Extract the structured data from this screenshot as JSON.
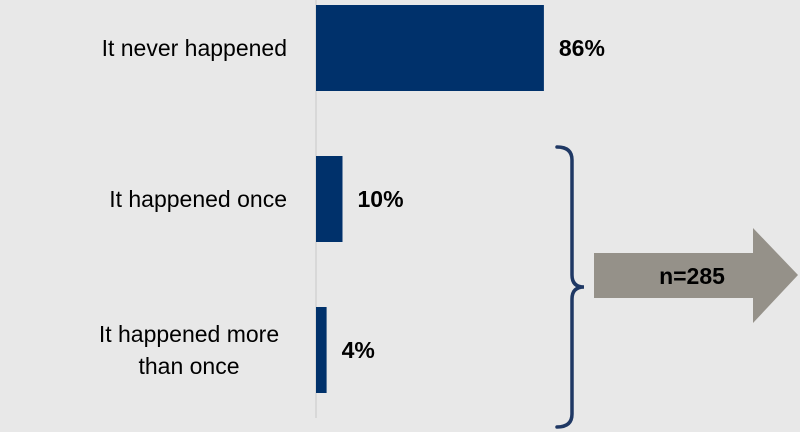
{
  "chart_data": {
    "type": "bar",
    "orientation": "horizontal",
    "categories": [
      [
        "It never happened"
      ],
      [
        "It happened once"
      ],
      [
        "It happened more",
        "than once"
      ]
    ],
    "values": [
      86,
      10,
      4
    ],
    "value_labels": [
      "86%",
      "10%",
      "4%"
    ],
    "xlim": [
      0,
      100
    ],
    "grid": false,
    "legend": "none",
    "annotation": {
      "text": "n=285",
      "brackets_categories": [
        1,
        2
      ]
    }
  },
  "colors": {
    "background": "#e8e8e8",
    "bar": "#00316b",
    "bracket": "#1f3864",
    "arrow": "#959189",
    "text": "#000000"
  }
}
